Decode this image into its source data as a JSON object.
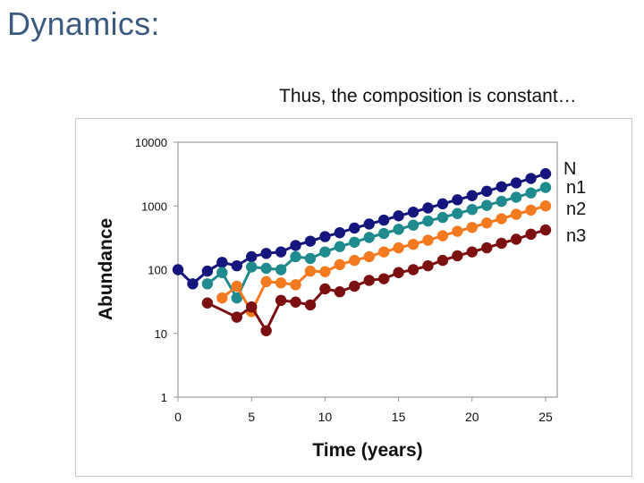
{
  "slide": {
    "title": "Dynamics:",
    "subtitle": "Thus, the composition is constant…"
  },
  "chart_data": {
    "type": "scatter",
    "xlabel": "Time (years)",
    "ylabel": "Abundance",
    "xlim": [
      0,
      25
    ],
    "ylim": [
      1,
      10000
    ],
    "y_scale": "log",
    "x_ticks": [
      0,
      5,
      10,
      15,
      20,
      25
    ],
    "y_ticks": [
      1,
      10,
      100,
      1000,
      10000
    ],
    "y_tick_labels": [
      "1",
      "10",
      "100",
      "1000",
      "10000"
    ],
    "grid": false,
    "legend": "right",
    "series": [
      {
        "name": "N",
        "color": "#14157d",
        "x": [
          0,
          1,
          2,
          3,
          4,
          5,
          6,
          7,
          8,
          9,
          10,
          11,
          12,
          13,
          14,
          15,
          16,
          17,
          18,
          19,
          20,
          21,
          22,
          23,
          24,
          25
        ],
        "y": [
          100,
          60,
          95,
          130,
          115,
          160,
          180,
          190,
          240,
          280,
          330,
          380,
          450,
          520,
          600,
          700,
          800,
          930,
          1080,
          1250,
          1450,
          1700,
          2000,
          2300,
          2700,
          3200
        ]
      },
      {
        "name": "n1",
        "color": "#1f8b8e",
        "x": [
          2,
          3,
          4,
          5,
          6,
          7,
          8,
          9,
          10,
          11,
          12,
          13,
          14,
          15,
          16,
          17,
          18,
          19,
          20,
          21,
          22,
          23,
          24,
          25
        ],
        "y": [
          60,
          90,
          36,
          110,
          105,
          100,
          160,
          150,
          190,
          230,
          270,
          320,
          370,
          430,
          500,
          580,
          660,
          760,
          880,
          1020,
          1180,
          1370,
          1600,
          1950
        ]
      },
      {
        "name": "n2",
        "color": "#f47a20",
        "x": [
          3,
          4,
          5,
          6,
          7,
          8,
          9,
          10,
          11,
          12,
          13,
          14,
          15,
          16,
          17,
          18,
          19,
          20,
          21,
          22,
          23,
          24,
          25
        ],
        "y": [
          36,
          55,
          22,
          65,
          62,
          58,
          95,
          93,
          120,
          140,
          160,
          190,
          220,
          250,
          290,
          340,
          400,
          460,
          540,
          630,
          740,
          860,
          1000
        ]
      },
      {
        "name": "n3",
        "color": "#7c1010",
        "x": [
          2,
          4,
          5,
          6,
          7,
          8,
          9,
          10,
          11,
          12,
          13,
          14,
          15,
          16,
          17,
          18,
          19,
          20,
          21,
          22,
          23,
          24,
          25
        ],
        "y": [
          30,
          18,
          26,
          11,
          33,
          31,
          28,
          50,
          45,
          55,
          68,
          72,
          90,
          100,
          115,
          140,
          165,
          190,
          220,
          260,
          300,
          360,
          420
        ]
      }
    ]
  }
}
